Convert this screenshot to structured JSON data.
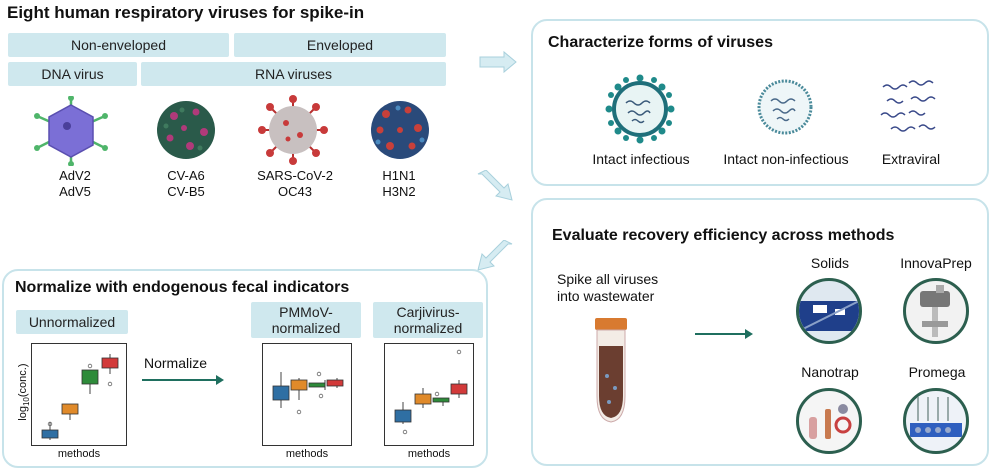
{
  "main_title": "Eight human respiratory viruses for spike-in",
  "categories": {
    "non_enveloped": "Non-enveloped",
    "enveloped": "Enveloped",
    "dna": "DNA virus",
    "rna": "RNA viruses"
  },
  "viruses": [
    {
      "line1": "AdV2",
      "line2": "AdV5",
      "color": "#7b6fd6"
    },
    {
      "line1": "CV-A6",
      "line2": "CV-B5",
      "color": "#2a5a4a"
    },
    {
      "line1": "SARS-CoV-2",
      "line2": "OC43",
      "color": "#c83a3a"
    },
    {
      "line1": "H1N1",
      "line2": "H3N2",
      "color": "#2a4a7a"
    }
  ],
  "characterize": {
    "title": "Characterize forms of viruses",
    "forms": [
      "Intact infectious",
      "Intact non-infectious",
      "Extraviral"
    ]
  },
  "evaluate": {
    "title": "Evaluate recovery efficiency across methods",
    "spike_line1": "Spike all viruses",
    "spike_line2": "into wastewater",
    "methods": [
      "Solids",
      "InnovaPrep",
      "Nanotrap",
      "Promega"
    ]
  },
  "normalize": {
    "title": "Normalize with endogenous fecal indicators",
    "label_unnorm": "Unnormalized",
    "label_pmmov_1": "PMMoV-",
    "label_pmmov_2": "normalized",
    "label_carj_1": "Carjivirus-",
    "label_carj_2": "normalized",
    "arrow_label": "Normalize",
    "ylabel": "log10(conc.)",
    "xlabel": "methods"
  },
  "colors": {
    "panel_border": "#c7e3ea",
    "pill": "#cfe8ee",
    "box_blue": "#2f6fa3",
    "box_orange": "#e08a2a",
    "box_green": "#2e8b3a",
    "box_red": "#d23a3a",
    "arrow": "#1f6f5f"
  }
}
